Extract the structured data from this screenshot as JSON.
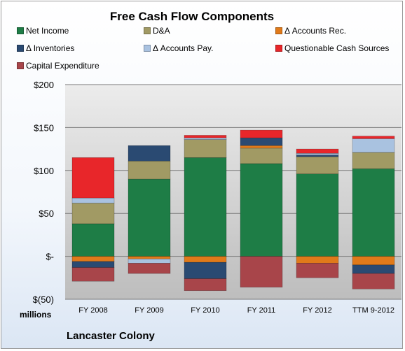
{
  "chart_data": {
    "type": "bar",
    "stacked": true,
    "title": "Free Cash Flow Components",
    "xlabel": "",
    "ylabel": "",
    "units_label": "millions",
    "company": "Lancaster Colony",
    "categories": [
      "FY 2008",
      "FY 2009",
      "FY 2010",
      "FY 2011",
      "FY 2012",
      "TTM 9-2012"
    ],
    "ylim": [
      -50,
      200
    ],
    "yticks": [
      {
        "value": 200,
        "label": "$200"
      },
      {
        "value": 150,
        "label": "$150"
      },
      {
        "value": 100,
        "label": "$100"
      },
      {
        "value": 50,
        "label": "$50"
      },
      {
        "value": 0,
        "label": "$-"
      },
      {
        "value": -50,
        "label": "$(50)"
      }
    ],
    "grid": true,
    "legend_position": "top",
    "series": [
      {
        "name": "Net Income",
        "color": "#1e7d46",
        "values": [
          38,
          90,
          115,
          108,
          96,
          102
        ]
      },
      {
        "name": "D&A",
        "color": "#a19a64",
        "values": [
          24,
          21,
          21,
          18,
          20,
          19
        ]
      },
      {
        "name": "Δ Accounts Rec.",
        "color": "#e07a1a",
        "values": [
          -6,
          -3,
          -7,
          3,
          -8,
          -10
        ]
      },
      {
        "name": "Δ Inventories",
        "color": "#2a4a72",
        "values": [
          -7,
          18,
          -19,
          9,
          2,
          -10
        ]
      },
      {
        "name": "Δ Accounts Pay.",
        "color": "#a9c2e0",
        "values": [
          6,
          -5,
          2,
          0,
          2,
          16
        ]
      },
      {
        "name": "Questionable Cash Sources",
        "color": "#e8262a",
        "values": [
          47,
          0,
          3,
          9,
          5,
          3
        ]
      },
      {
        "name": "Capital Expenditure",
        "color": "#a8454a",
        "values": [
          -16,
          -12,
          -14,
          -36,
          -17,
          -18
        ]
      }
    ]
  }
}
